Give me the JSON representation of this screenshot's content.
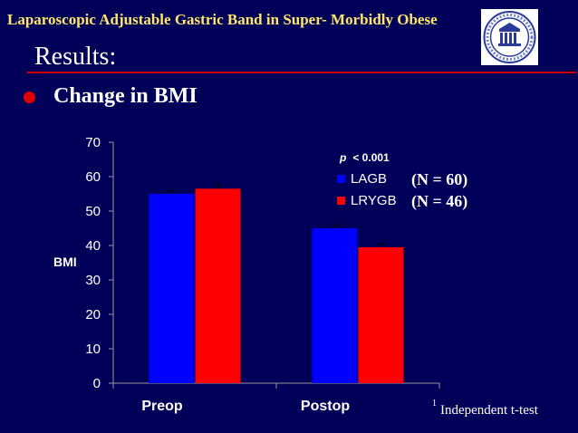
{
  "header": {
    "title": "Laparoscopic Adjustable Gastric Band in Super- Morbidly Obese"
  },
  "slide": {
    "title": "Results:",
    "bullet": "Change in BMI"
  },
  "colors": {
    "background": "#000058",
    "header_text": "#ffe66a",
    "accent": "#d00000",
    "lagb": "#0000ff",
    "lrygb": "#ff0000"
  },
  "chart_data": {
    "type": "bar",
    "categories": [
      "Preop",
      "Postop"
    ],
    "series": [
      {
        "name": "LAGB",
        "values": [
          55,
          45
        ],
        "error": [
          1,
          1
        ],
        "color": "#0000ff"
      },
      {
        "name": "LRYGB",
        "values": [
          56.5,
          39.5
        ],
        "error": [
          1,
          1
        ],
        "color": "#ff0000"
      }
    ],
    "ylabel": "BMI",
    "ylim": [
      0,
      70
    ],
    "yticks": [
      0,
      10,
      20,
      30,
      40,
      50,
      60,
      70
    ],
    "grid": false,
    "legend_position": "top-right",
    "legend_notes": [
      "(N = 60)",
      "(N = 46)"
    ],
    "p_value": {
      "prefix": "p",
      "text": "< 0.001"
    },
    "footnote": {
      "marker": "1",
      "text": "Independent t-test"
    }
  }
}
